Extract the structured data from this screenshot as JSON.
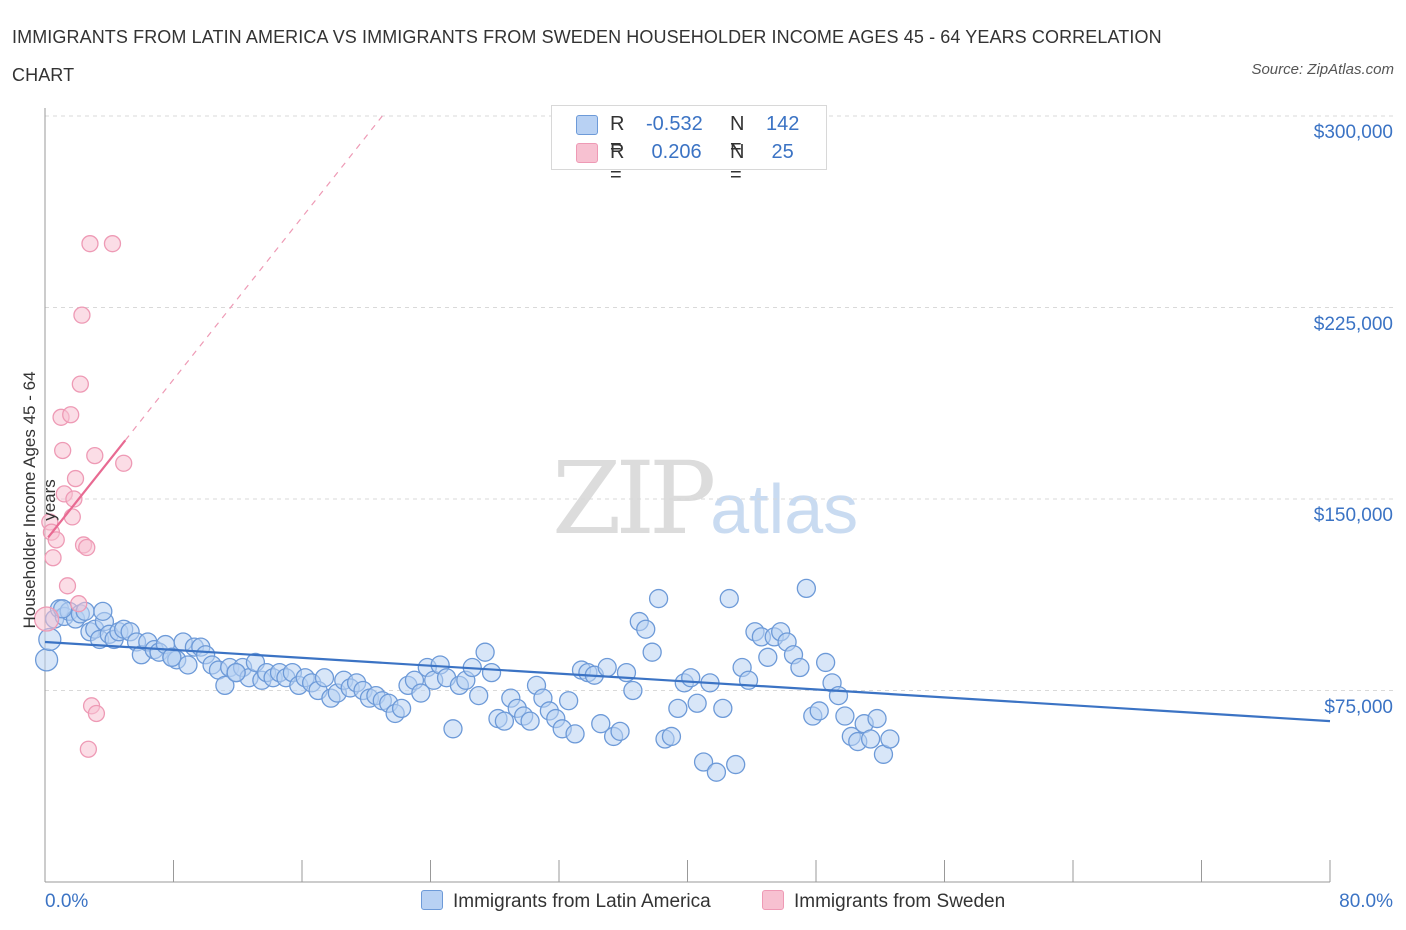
{
  "title": "IMMIGRANTS FROM LATIN AMERICA VS IMMIGRANTS FROM SWEDEN HOUSEHOLDER INCOME AGES 45 - 64 YEARS CORRELATION CHART",
  "source": "Source: ZipAtlas.com",
  "watermark": {
    "zip": "ZIP",
    "atlas": "atlas"
  },
  "colors": {
    "blue": "#3b73c4",
    "blue_fill": "#b8d1f3",
    "blue_stroke": "#6d9ad8",
    "pink": "#e86a92",
    "pink_fill": "#f7c1d1",
    "pink_stroke": "#ee9ab5",
    "grid": "#d9d9d9"
  },
  "legend": {
    "series1": {
      "r_label": "R =",
      "r_value": "-0.532",
      "n_label": "N =",
      "n_value": "142"
    },
    "series2": {
      "r_label": "R =",
      "r_value": " 0.206",
      "n_label": "N =",
      "n_value": " 25"
    }
  },
  "bottom_legend": {
    "series1": "Immigrants from Latin America",
    "series2": "Immigrants from Sweden"
  },
  "chart_data": {
    "type": "scatter",
    "title": "IMMIGRANTS FROM LATIN AMERICA VS IMMIGRANTS FROM SWEDEN HOUSEHOLDER INCOME AGES 45 - 64 YEARS CORRELATION CHART",
    "xlabel": "",
    "ylabel": "Householder Income Ages 45 - 64 years",
    "xlim": [
      0,
      80
    ],
    "ylim": [
      0,
      300000
    ],
    "x_tick_labels": [
      "0.0%",
      "80.0%"
    ],
    "y_ticks": [
      75000,
      150000,
      225000,
      300000
    ],
    "y_tick_labels": [
      "$75,000",
      "$150,000",
      "$225,000",
      "$300,000"
    ],
    "grid": "horizontal dashed",
    "legend_position": "top-center",
    "series": [
      {
        "name": "Immigrants from Latin America",
        "color": "#6d9ad8",
        "trend": {
          "x0": 0,
          "y0": 94000,
          "x1": 80,
          "y1": 63000
        },
        "points": [
          [
            0.1,
            87000
          ],
          [
            0.3,
            95000
          ],
          [
            0.6,
            103000
          ],
          [
            0.9,
            107000
          ],
          [
            1.2,
            104000
          ],
          [
            1.5,
            106000
          ],
          [
            1.9,
            103000
          ],
          [
            2.2,
            105000
          ],
          [
            2.5,
            106000
          ],
          [
            2.8,
            98000
          ],
          [
            3.1,
            99000
          ],
          [
            3.4,
            95000
          ],
          [
            3.7,
            102000
          ],
          [
            4.0,
            97000
          ],
          [
            4.3,
            95000
          ],
          [
            4.6,
            98000
          ],
          [
            4.9,
            99000
          ],
          [
            5.3,
            98000
          ],
          [
            5.7,
            94000
          ],
          [
            6.0,
            89000
          ],
          [
            6.4,
            94000
          ],
          [
            6.8,
            91000
          ],
          [
            7.1,
            90000
          ],
          [
            7.5,
            93000
          ],
          [
            7.9,
            88000
          ],
          [
            8.2,
            87000
          ],
          [
            8.6,
            94000
          ],
          [
            8.9,
            85000
          ],
          [
            9.3,
            92000
          ],
          [
            9.7,
            92000
          ],
          [
            10.0,
            89000
          ],
          [
            10.4,
            85000
          ],
          [
            10.8,
            83000
          ],
          [
            11.2,
            77000
          ],
          [
            11.5,
            84000
          ],
          [
            11.9,
            82000
          ],
          [
            12.3,
            84000
          ],
          [
            12.7,
            80000
          ],
          [
            13.1,
            86000
          ],
          [
            13.5,
            79000
          ],
          [
            13.8,
            82000
          ],
          [
            14.2,
            80000
          ],
          [
            14.6,
            82000
          ],
          [
            15.0,
            80000
          ],
          [
            15.4,
            82000
          ],
          [
            15.8,
            77000
          ],
          [
            16.2,
            80000
          ],
          [
            16.6,
            78000
          ],
          [
            17.0,
            75000
          ],
          [
            17.4,
            80000
          ],
          [
            17.8,
            72000
          ],
          [
            18.2,
            74000
          ],
          [
            18.6,
            79000
          ],
          [
            19.0,
            76000
          ],
          [
            19.4,
            78000
          ],
          [
            19.8,
            75000
          ],
          [
            20.2,
            72000
          ],
          [
            20.6,
            73000
          ],
          [
            21.0,
            71000
          ],
          [
            21.4,
            70000
          ],
          [
            21.8,
            66000
          ],
          [
            22.2,
            68000
          ],
          [
            22.6,
            77000
          ],
          [
            23.0,
            79000
          ],
          [
            23.4,
            74000
          ],
          [
            23.8,
            84000
          ],
          [
            24.2,
            79000
          ],
          [
            24.6,
            85000
          ],
          [
            25.0,
            80000
          ],
          [
            25.4,
            60000
          ],
          [
            25.8,
            77000
          ],
          [
            26.2,
            79000
          ],
          [
            26.6,
            84000
          ],
          [
            27.0,
            73000
          ],
          [
            27.4,
            90000
          ],
          [
            27.8,
            82000
          ],
          [
            28.2,
            64000
          ],
          [
            28.6,
            63000
          ],
          [
            29.0,
            72000
          ],
          [
            29.4,
            68000
          ],
          [
            29.8,
            65000
          ],
          [
            30.2,
            63000
          ],
          [
            30.6,
            77000
          ],
          [
            31.0,
            72000
          ],
          [
            31.4,
            67000
          ],
          [
            31.8,
            64000
          ],
          [
            32.2,
            60000
          ],
          [
            32.6,
            71000
          ],
          [
            33.0,
            58000
          ],
          [
            33.4,
            83000
          ],
          [
            33.8,
            82000
          ],
          [
            34.2,
            81000
          ],
          [
            34.6,
            62000
          ],
          [
            35.0,
            84000
          ],
          [
            35.4,
            57000
          ],
          [
            35.8,
            59000
          ],
          [
            36.2,
            82000
          ],
          [
            36.6,
            75000
          ],
          [
            37.0,
            102000
          ],
          [
            37.4,
            99000
          ],
          [
            37.8,
            90000
          ],
          [
            38.2,
            111000
          ],
          [
            38.6,
            56000
          ],
          [
            39.0,
            57000
          ],
          [
            39.4,
            68000
          ],
          [
            39.8,
            78000
          ],
          [
            40.2,
            80000
          ],
          [
            40.6,
            70000
          ],
          [
            41.0,
            47000
          ],
          [
            41.4,
            78000
          ],
          [
            41.8,
            43000
          ],
          [
            42.2,
            68000
          ],
          [
            42.6,
            111000
          ],
          [
            43.0,
            46000
          ],
          [
            43.4,
            84000
          ],
          [
            43.8,
            79000
          ],
          [
            44.2,
            98000
          ],
          [
            44.6,
            96000
          ],
          [
            45.0,
            88000
          ],
          [
            45.4,
            96000
          ],
          [
            45.8,
            98000
          ],
          [
            46.2,
            94000
          ],
          [
            46.6,
            89000
          ],
          [
            47.0,
            84000
          ],
          [
            47.4,
            115000
          ],
          [
            47.8,
            65000
          ],
          [
            48.2,
            67000
          ],
          [
            48.6,
            86000
          ],
          [
            49.0,
            78000
          ],
          [
            49.4,
            73000
          ],
          [
            49.8,
            65000
          ],
          [
            50.2,
            57000
          ],
          [
            50.6,
            55000
          ],
          [
            51.0,
            62000
          ],
          [
            51.4,
            56000
          ],
          [
            51.8,
            64000
          ],
          [
            52.2,
            50000
          ],
          [
            52.6,
            56000
          ],
          [
            1.1,
            107000
          ],
          [
            3.6,
            106000
          ],
          [
            7.9,
            88000
          ],
          [
            11.9,
            82000
          ]
        ]
      },
      {
        "name": "Immigrants from Sweden",
        "color": "#ee9ab5",
        "trend": {
          "x0": 0.2,
          "y0": 135000,
          "x1": 5.0,
          "y1": 173000,
          "dash_to": {
            "x": 21.0,
            "y": 300000
          }
        },
        "points": [
          [
            0.1,
            103000
          ],
          [
            0.3,
            141000
          ],
          [
            0.4,
            137000
          ],
          [
            0.5,
            127000
          ],
          [
            0.7,
            134000
          ],
          [
            1.0,
            182000
          ],
          [
            1.1,
            169000
          ],
          [
            1.2,
            152000
          ],
          [
            1.4,
            116000
          ],
          [
            1.6,
            183000
          ],
          [
            1.7,
            143000
          ],
          [
            1.8,
            150000
          ],
          [
            1.9,
            158000
          ],
          [
            2.1,
            109000
          ],
          [
            2.2,
            195000
          ],
          [
            2.3,
            222000
          ],
          [
            2.4,
            132000
          ],
          [
            2.6,
            131000
          ],
          [
            2.7,
            52000
          ],
          [
            2.8,
            250000
          ],
          [
            2.9,
            69000
          ],
          [
            3.1,
            167000
          ],
          [
            3.2,
            66000
          ],
          [
            4.2,
            250000
          ],
          [
            4.9,
            164000
          ]
        ]
      }
    ]
  }
}
